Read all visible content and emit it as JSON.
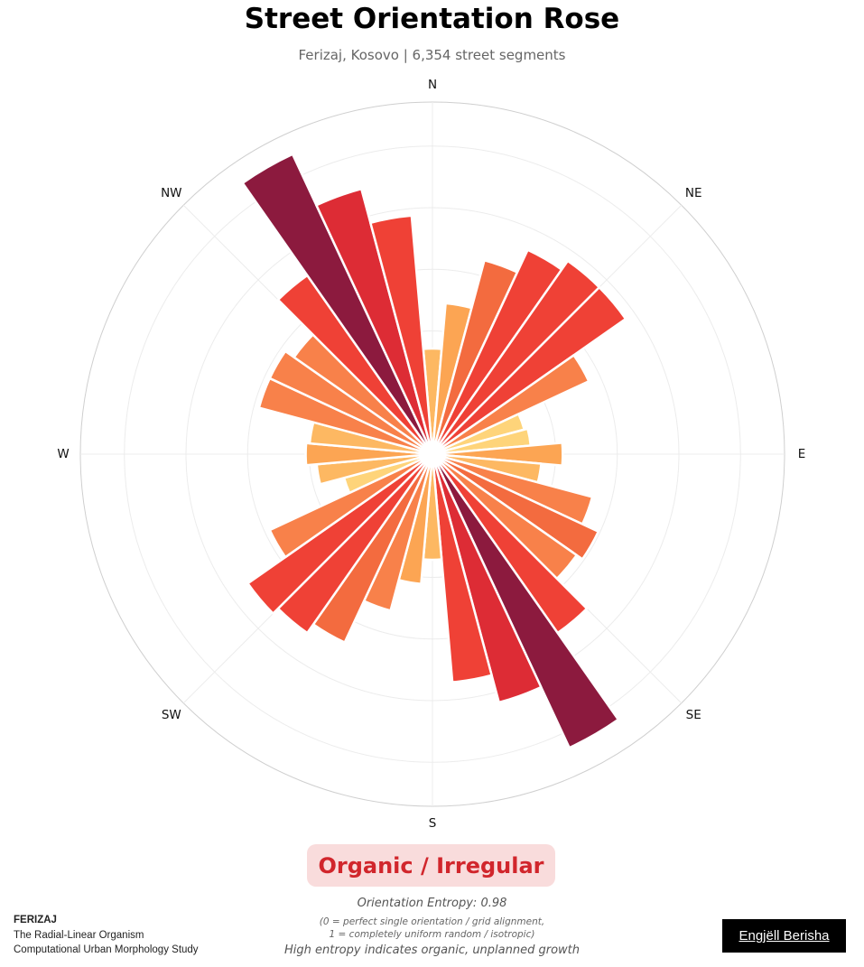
{
  "header": {
    "title": "Street Orientation Rose",
    "subtitle": "Ferizaj, Kosovo | 6,354 street segments"
  },
  "chart_data": {
    "type": "polar-bar",
    "bins": 36,
    "bin_width_deg": 10,
    "directions": [
      "N",
      "NE",
      "E",
      "SE",
      "S",
      "SW",
      "W",
      "NW"
    ],
    "grid": true,
    "bars": [
      {
        "bearing": 0,
        "value": 0.3
      },
      {
        "bearing": 10,
        "value": 0.43
      },
      {
        "bearing": 20,
        "value": 0.57
      },
      {
        "bearing": 30,
        "value": 0.64
      },
      {
        "bearing": 40,
        "value": 0.67
      },
      {
        "bearing": 50,
        "value": 0.67
      },
      {
        "bearing": 60,
        "value": 0.49
      },
      {
        "bearing": 70,
        "value": 0.27
      },
      {
        "bearing": 80,
        "value": 0.28
      },
      {
        "bearing": 90,
        "value": 0.37
      },
      {
        "bearing": 100,
        "value": 0.31
      },
      {
        "bearing": 110,
        "value": 0.47
      },
      {
        "bearing": 120,
        "value": 0.52
      },
      {
        "bearing": 130,
        "value": 0.5
      },
      {
        "bearing": 140,
        "value": 0.62
      },
      {
        "bearing": 150,
        "value": 0.92
      },
      {
        "bearing": 160,
        "value": 0.73
      },
      {
        "bearing": 170,
        "value": 0.65
      },
      {
        "bearing": 180,
        "value": 0.3
      },
      {
        "bearing": 190,
        "value": 0.37
      },
      {
        "bearing": 200,
        "value": 0.46
      },
      {
        "bearing": 210,
        "value": 0.59
      },
      {
        "bearing": 220,
        "value": 0.62
      },
      {
        "bearing": 230,
        "value": 0.64
      },
      {
        "bearing": 240,
        "value": 0.51
      },
      {
        "bearing": 250,
        "value": 0.26
      },
      {
        "bearing": 260,
        "value": 0.33
      },
      {
        "bearing": 270,
        "value": 0.36
      },
      {
        "bearing": 280,
        "value": 0.35
      },
      {
        "bearing": 290,
        "value": 0.51
      },
      {
        "bearing": 300,
        "value": 0.51
      },
      {
        "bearing": 310,
        "value": 0.48
      },
      {
        "bearing": 320,
        "value": 0.62
      },
      {
        "bearing": 330,
        "value": 0.94
      },
      {
        "bearing": 340,
        "value": 0.78
      },
      {
        "bearing": 350,
        "value": 0.68
      }
    ]
  },
  "classification": {
    "label": "Organic / Irregular",
    "entropy": "Orientation Entropy: 0.98",
    "scale_line1": "(0 = perfect single orientation / grid alignment,",
    "scale_line2": "1 = completely uniform random / isotropic)",
    "interpretation": "High entropy indicates organic, unplanned growth"
  },
  "footer": {
    "city": "FERIZAJ",
    "project": "The Radial-Linear Organism",
    "study": "Computational Urban Morphology Study",
    "author": "Engjëll Berisha"
  }
}
